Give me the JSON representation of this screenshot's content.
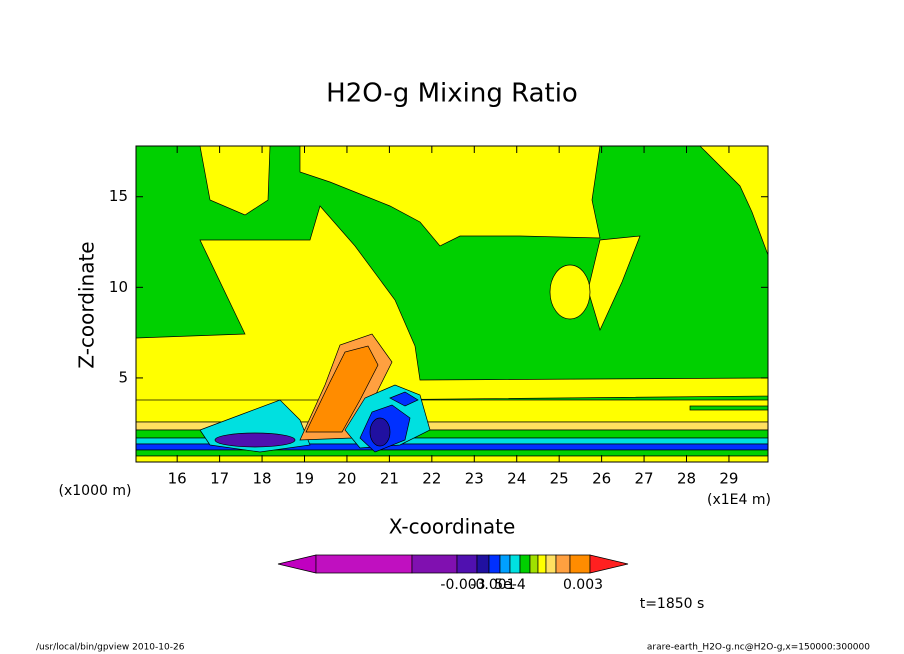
{
  "chart_data": {
    "type": "contour",
    "title": "H2O-g Mixing Ratio",
    "x_label": "X-coordinate",
    "y_label": "Z-coordinate",
    "x_unit_label": "(x1E4 m)",
    "y_unit_label": "(x1000 m)",
    "xlim": [
      15.03,
      29.92
    ],
    "ylim": [
      0.36,
      17.8
    ],
    "xticks": [
      16,
      17,
      18,
      19,
      20,
      21,
      22,
      23,
      24,
      25,
      26,
      27,
      28,
      29
    ],
    "yticks": [
      5,
      10,
      15
    ],
    "colorbar": {
      "colors": [
        "#c000c0",
        "#c010c0",
        "#8010b0",
        "#5010b0",
        "#2010a0",
        "#0030ff",
        "#00a0ff",
        "#00e0e0",
        "#00d000",
        "#a0e000",
        "#ffff00",
        "#ffe060",
        "#ffa040",
        "#ff8c00",
        "#ff2020"
      ],
      "labels": [
        "-0.003",
        "-0.001",
        "5e-4",
        "0.003"
      ]
    },
    "time_label": "t=1850 s",
    "footer_left": "/usr/local/bin/gpview  2010-10-26",
    "footer_right": "arare-earth_H2O-g.nc@H2O-g,x=150000:300000"
  }
}
